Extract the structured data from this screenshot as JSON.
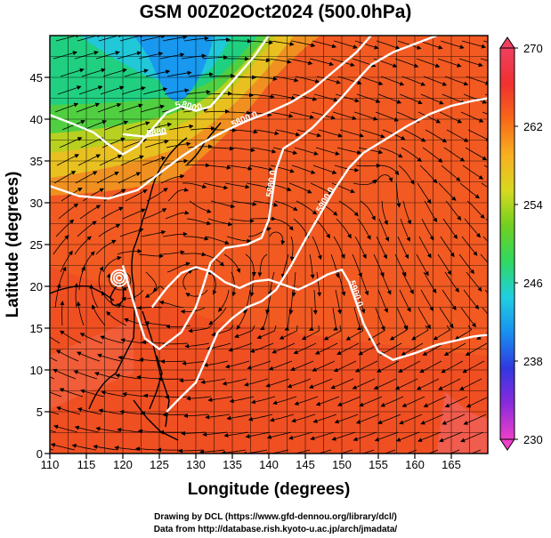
{
  "title": "GSM 00Z02Oct2024 (500.0hPa)",
  "map": {
    "xlabel": "Longitude (degrees)",
    "ylabel": "Latitude  (degrees)",
    "xlim": [
      110,
      170
    ],
    "ylim": [
      0,
      50
    ],
    "xticks": [
      110,
      115,
      120,
      125,
      130,
      135,
      140,
      145,
      150,
      155,
      160,
      165
    ],
    "yticks": [
      0,
      5,
      10,
      15,
      20,
      25,
      30,
      35,
      40,
      45
    ],
    "grid": true,
    "contours": [
      {
        "label": "5800.0",
        "points": [
          [
            110,
            32.0
          ],
          [
            114,
            30.8
          ],
          [
            118,
            30.5
          ],
          [
            122,
            31.5
          ],
          [
            125,
            33.5
          ],
          [
            128,
            35.5
          ],
          [
            131,
            37.2
          ],
          [
            134,
            38.6
          ],
          [
            137,
            39.8
          ],
          [
            140,
            40.8
          ],
          [
            143,
            42.0
          ],
          [
            146,
            43.6
          ],
          [
            149,
            45.8
          ],
          [
            152,
            48.0
          ],
          [
            154,
            50
          ]
        ]
      },
      {
        "label": "5800.0",
        "points": [
          [
            110,
            40.5
          ],
          [
            113,
            39.5
          ],
          [
            116,
            38.4
          ],
          [
            118,
            37.0
          ],
          [
            120,
            35.8
          ],
          [
            122,
            36.8
          ],
          [
            124,
            38.8
          ],
          [
            126,
            40.8
          ],
          [
            128,
            41.5
          ],
          [
            130,
            41.0
          ],
          [
            132,
            41.5
          ],
          [
            134,
            43.5
          ],
          [
            136,
            45.5
          ],
          [
            138,
            47.5
          ],
          [
            140,
            50
          ]
        ]
      },
      {
        "label": "5880.0",
        "points": [
          [
            120,
            38.2
          ],
          [
            123,
            37.9
          ],
          [
            126,
            38.3
          ]
        ]
      },
      {
        "label": "5900.0",
        "points": [
          [
            126,
            5.0
          ],
          [
            128,
            6.8
          ],
          [
            130,
            8.5
          ],
          [
            131,
            10.5
          ],
          [
            132,
            12.5
          ],
          [
            133,
            14.5
          ],
          [
            135,
            16.2
          ],
          [
            137,
            17.5
          ],
          [
            139,
            18.2
          ],
          [
            141,
            19.6
          ],
          [
            143,
            22.4
          ],
          [
            145,
            25.6
          ],
          [
            147,
            28.6
          ],
          [
            149,
            31.6
          ],
          [
            151,
            34.2
          ],
          [
            153,
            36.0
          ],
          [
            156,
            37.6
          ],
          [
            159,
            39.2
          ],
          [
            162,
            40.6
          ],
          [
            165,
            41.6
          ],
          [
            168,
            42.2
          ],
          [
            170,
            42.5
          ]
        ]
      },
      {
        "label": "5880.0",
        "points": [
          [
            120,
            22.5
          ],
          [
            121,
            19.5
          ],
          [
            122,
            16.5
          ],
          [
            123,
            13.8
          ],
          [
            125,
            12.5
          ],
          [
            128,
            14.5
          ],
          [
            130,
            17.5
          ],
          [
            131,
            20.0
          ],
          [
            132,
            22.8
          ],
          [
            134,
            24.6
          ],
          [
            137,
            25.0
          ],
          [
            139,
            25.8
          ],
          [
            140,
            28.0
          ],
          [
            140.5,
            31.0
          ],
          [
            141,
            34.0
          ],
          [
            142,
            36.5
          ],
          [
            144,
            37.6
          ],
          [
            146,
            39.0
          ],
          [
            148,
            40.8
          ],
          [
            150,
            42.6
          ],
          [
            152,
            44.6
          ],
          [
            154,
            46.5
          ],
          [
            157,
            48.0
          ],
          [
            160,
            49.0
          ],
          [
            163,
            50
          ]
        ]
      },
      {
        "label": "5900.0",
        "points": [
          [
            124,
            17.5
          ],
          [
            126,
            19.8
          ],
          [
            128,
            21.6
          ],
          [
            130,
            22.3
          ],
          [
            132,
            21.8
          ],
          [
            134,
            20.5
          ],
          [
            136,
            19.8
          ],
          [
            138,
            20.6
          ],
          [
            140,
            20.8
          ],
          [
            142,
            20.2
          ],
          [
            144,
            19.6
          ],
          [
            146,
            20.4
          ],
          [
            148,
            21.4
          ],
          [
            150,
            22.0
          ],
          [
            151,
            20.5
          ],
          [
            152,
            18.0
          ],
          [
            153,
            15.5
          ],
          [
            155,
            12.2
          ],
          [
            157,
            11.2
          ],
          [
            160,
            12.0
          ],
          [
            163,
            13.0
          ],
          [
            166,
            13.6
          ],
          [
            168,
            14.0
          ],
          [
            170,
            14.2
          ]
        ]
      }
    ],
    "cyclone": {
      "lon": 119.5,
      "lat": 21.0
    }
  },
  "colorbar": {
    "ticks": [
      230,
      238,
      246,
      254,
      262,
      270
    ],
    "range": [
      230,
      270
    ],
    "colors": [
      "#ee40c8",
      "#8a2adc",
      "#3038e0",
      "#1890f0",
      "#20d0e0",
      "#30d860",
      "#70d020",
      "#d8d820",
      "#f8b020",
      "#f86818",
      "#f03030",
      "#f04060"
    ]
  },
  "credits": {
    "line1": "Drawing by DCL (https://www.gfd-dennou.org/library/dcl/)",
    "line2": "Data from http://database.rish.kyoto-u.ac.jp/arch/jmadata/"
  }
}
